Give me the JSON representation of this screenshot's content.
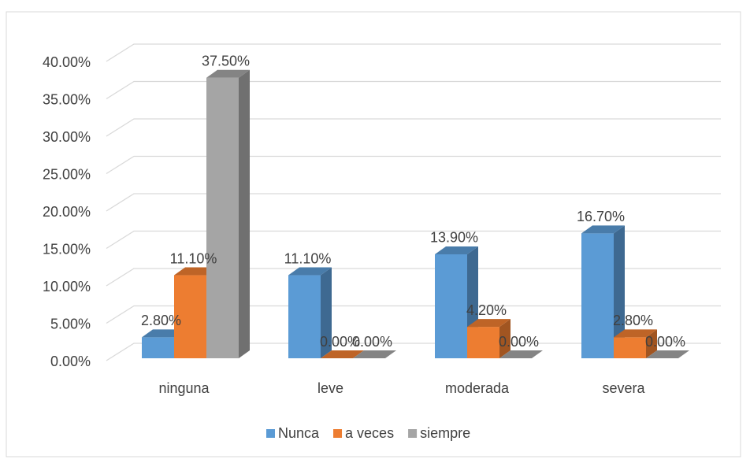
{
  "chart_data": {
    "type": "bar3d",
    "categories": [
      "ninguna",
      "leve",
      "moderada",
      "severa"
    ],
    "series": [
      {
        "name": "Nunca",
        "color": "#5b9bd5",
        "values": [
          2.8,
          11.1,
          13.9,
          16.7
        ],
        "value_labels": [
          "2.80%",
          "11.10%",
          "13.90%",
          "16.70%"
        ]
      },
      {
        "name": "a veces",
        "color": "#ed7d31",
        "values": [
          11.1,
          0,
          4.2,
          2.8
        ],
        "value_labels": [
          "11.10%",
          "0.00%",
          "4.20%",
          "2.80%"
        ]
      },
      {
        "name": "siempre",
        "color": "#a5a5a5",
        "values": [
          37.5,
          0,
          0,
          0
        ],
        "value_labels": [
          "37.50%",
          "0.00%",
          "0.00%",
          "0.00%"
        ]
      }
    ],
    "ylim": [
      0,
      40
    ],
    "yticks": [
      {
        "value": 0,
        "label": "0.00%"
      },
      {
        "value": 5,
        "label": "5.00%"
      },
      {
        "value": 10,
        "label": "10.00%"
      },
      {
        "value": 15,
        "label": "15.00%"
      },
      {
        "value": 20,
        "label": "20.00%"
      },
      {
        "value": 25,
        "label": "25.00%"
      },
      {
        "value": 30,
        "label": "30.00%"
      },
      {
        "value": 35,
        "label": "35.00%"
      },
      {
        "value": 40,
        "label": "40.00%"
      }
    ],
    "grid": true,
    "legend": "bottom"
  }
}
